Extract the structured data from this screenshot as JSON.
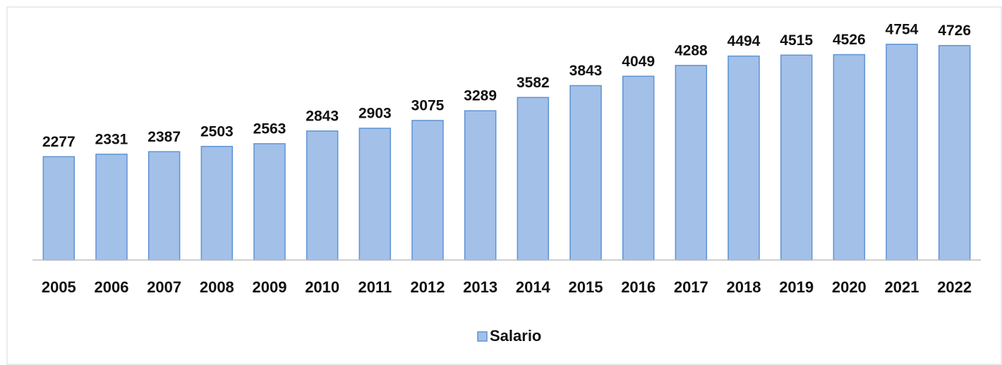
{
  "chart_data": {
    "type": "bar",
    "categories": [
      "2005",
      "2006",
      "2007",
      "2008",
      "2009",
      "2010",
      "2011",
      "2012",
      "2013",
      "2014",
      "2015",
      "2016",
      "2017",
      "2018",
      "2019",
      "2020",
      "2021",
      "2022"
    ],
    "series": [
      {
        "name": "Salario",
        "color": "#a3c0e8",
        "values": [
          2277,
          2331,
          2387,
          2503,
          2563,
          2843,
          2903,
          3075,
          3289,
          3582,
          3843,
          4049,
          4288,
          4494,
          4515,
          4526,
          4754,
          4726
        ]
      }
    ],
    "ylim": [
      0,
      5000
    ],
    "legend": "bottom"
  }
}
